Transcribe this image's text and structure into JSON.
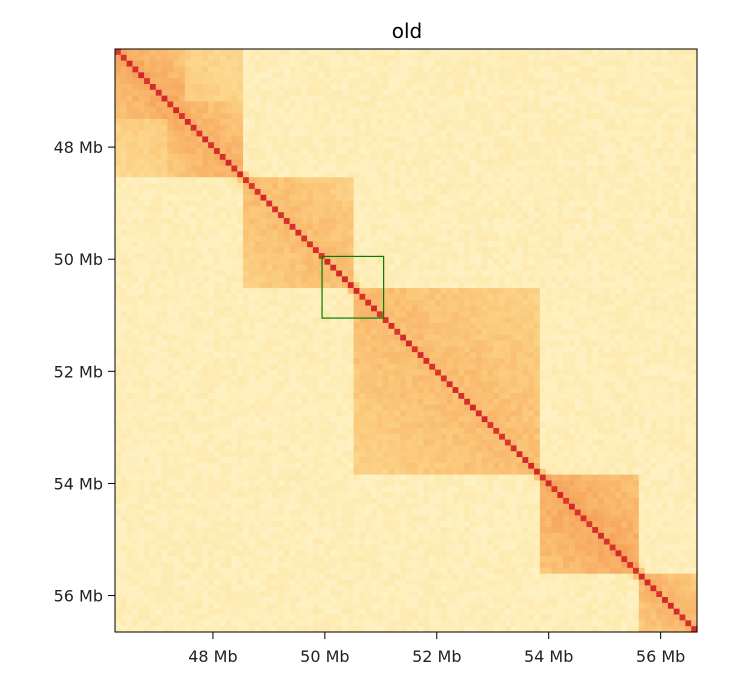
{
  "chart_data": {
    "type": "heatmap",
    "title": "old",
    "xlabel": "",
    "ylabel": "",
    "x_range_mb": [
      46.25,
      56.65
    ],
    "y_range_mb": [
      46.25,
      56.65
    ],
    "y_inverted": true,
    "x_ticks": [
      {
        "value": 48,
        "label": "48 Mb"
      },
      {
        "value": 50,
        "label": "50 Mb"
      },
      {
        "value": 52,
        "label": "52 Mb"
      },
      {
        "value": 54,
        "label": "54 Mb"
      },
      {
        "value": 56,
        "label": "56 Mb"
      }
    ],
    "y_ticks": [
      {
        "value": 48,
        "label": "48 Mb"
      },
      {
        "value": 50,
        "label": "50 Mb"
      },
      {
        "value": 52,
        "label": "52 Mb"
      },
      {
        "value": 54,
        "label": "54 Mb"
      },
      {
        "value": 56,
        "label": "56 Mb"
      }
    ],
    "colormap": [
      "#fffbe0",
      "#fde8a8",
      "#fbc97a",
      "#f59d58",
      "#ea5b33",
      "#d3272a"
    ],
    "background_intensity": 0.14,
    "diagonal_intensity": 0.98,
    "domains": [
      {
        "start": 46.25,
        "end": 47.45,
        "intensity": 0.55
      },
      {
        "start": 46.25,
        "end": 48.5,
        "intensity": 0.4
      },
      {
        "start": 47.2,
        "end": 48.5,
        "intensity": 0.52
      },
      {
        "start": 48.5,
        "end": 50.55,
        "intensity": 0.46
      },
      {
        "start": 50.55,
        "end": 53.8,
        "intensity": 0.46
      },
      {
        "start": 53.8,
        "end": 55.6,
        "intensity": 0.55
      },
      {
        "start": 55.6,
        "end": 56.65,
        "intensity": 0.5
      }
    ],
    "highlight_box": {
      "x_range": [
        49.95,
        51.05
      ],
      "y_range": [
        49.95,
        51.05
      ],
      "color": "#008000"
    }
  }
}
